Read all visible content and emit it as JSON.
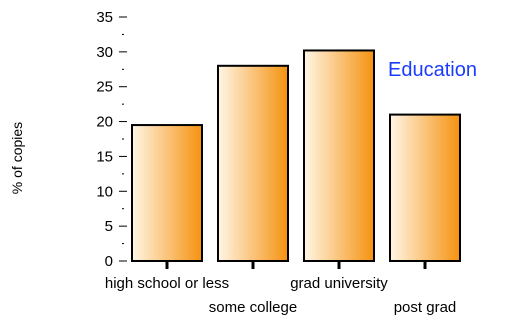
{
  "chart_data": {
    "type": "bar",
    "title": "",
    "xlabel": "",
    "ylabel": "% of copies",
    "categories": [
      "high school or less",
      "some college",
      "grad university",
      "post grad"
    ],
    "values": [
      19.5,
      28,
      30.2,
      21
    ],
    "ylim": [
      0,
      35
    ],
    "y_ticks": [
      0,
      5,
      10,
      15,
      20,
      25,
      30,
      35
    ],
    "y_minor_ticks": [
      2.5,
      7.5,
      12.5,
      17.5,
      22.5,
      27.5,
      32.5
    ],
    "grid": false,
    "legend": "none",
    "annotation": "Education",
    "colors": {
      "bar_light": "#fff6e6",
      "bar_dark": "#f5920f",
      "bar_border": "#000000",
      "annotation": "#1a3cff",
      "axis": "#000000"
    }
  }
}
